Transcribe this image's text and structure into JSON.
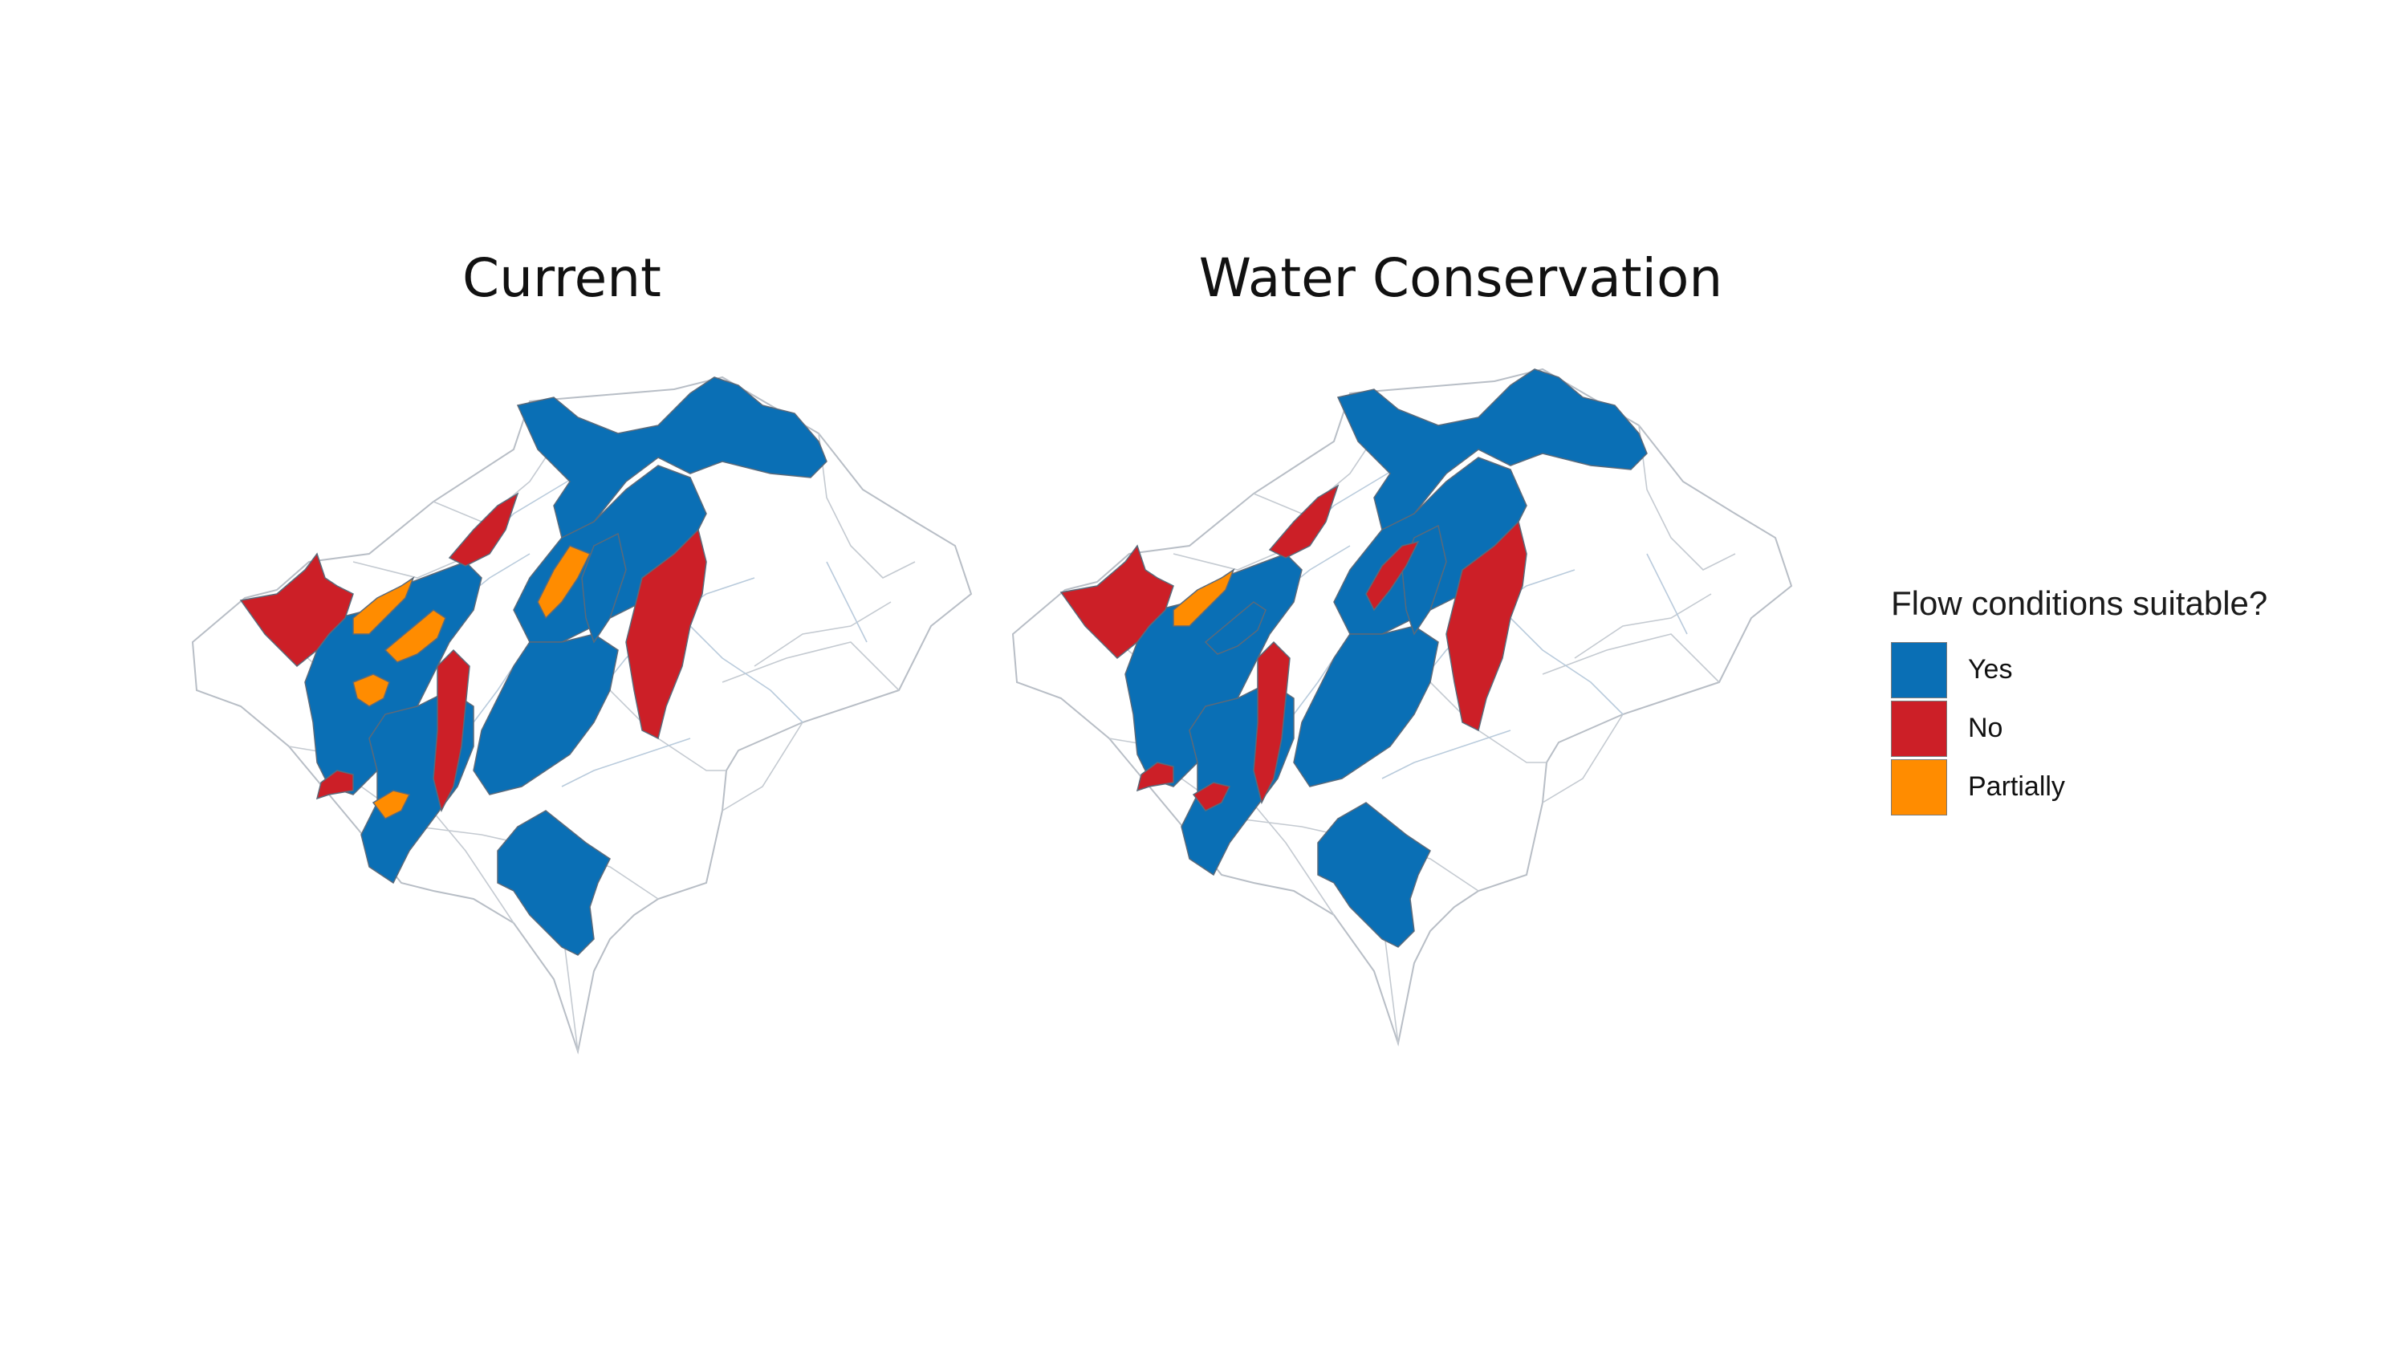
{
  "panels": [
    {
      "title": "Current"
    },
    {
      "title": "Water Conservation"
    }
  ],
  "legend": {
    "title": "Flow conditions suitable?",
    "items": [
      {
        "label": "Yes",
        "color": "#0a6fb5"
      },
      {
        "label": "No",
        "color": "#cc1f27"
      },
      {
        "label": "Partially",
        "color": "#ff8c00"
      }
    ]
  },
  "colors": {
    "yes": "#0a6fb5",
    "no": "#cc1f27",
    "partially": "#ff8c00",
    "outline": "#b8bec6",
    "river": "#b9cbdc"
  }
}
